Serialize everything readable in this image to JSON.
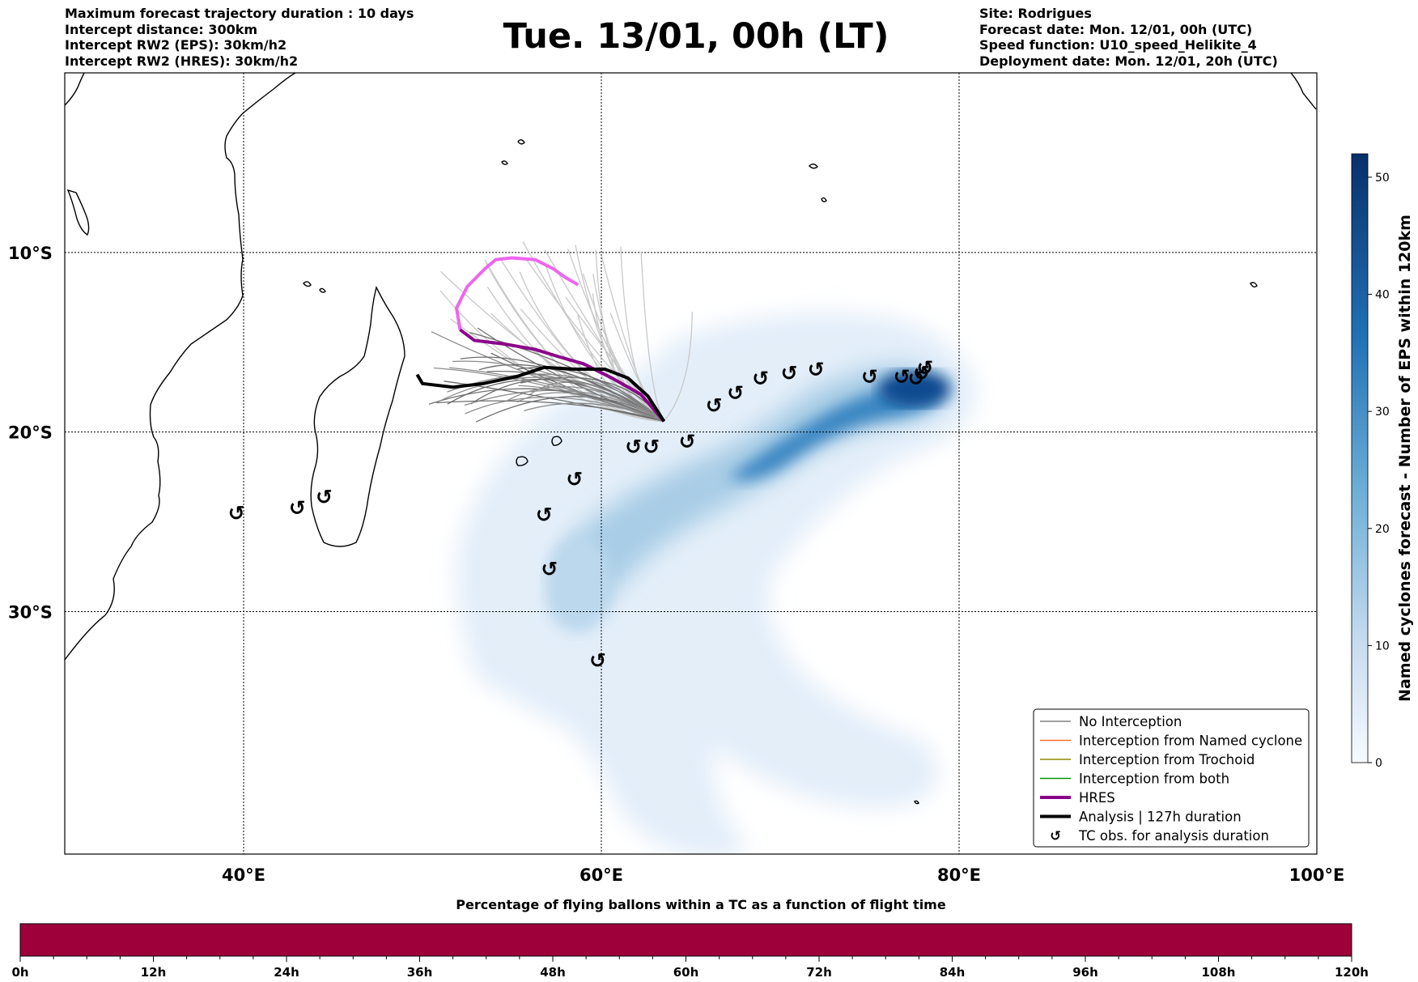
{
  "header_left": [
    "Maximum forecast trajectory duration : 10 days",
    "Intercept distance: 300km",
    "Intercept RW2 (EPS):  30km/h2",
    "Intercept RW2 (HRES): 30km/h2"
  ],
  "title": "Tue. 13/01, 00h (LT)",
  "header_right": [
    "Site: Rodrigues",
    "Forecast date: Mon. 12/01, 00h (UTC)",
    "Speed function: U10_speed_Helikite_4",
    "Deployment date: Mon. 12/01, 20h (UTC)"
  ],
  "map": {
    "lon_range": [
      30,
      100
    ],
    "lat_range": [
      -43.5,
      0
    ],
    "lat_labels": [
      {
        "lat": -10,
        "text": "10°S"
      },
      {
        "lat": -20,
        "text": "20°S"
      },
      {
        "lat": -30,
        "text": "30°S"
      }
    ],
    "lon_labels": [
      {
        "lon": 40,
        "text": "40°E"
      },
      {
        "lon": 60,
        "text": "60°E"
      },
      {
        "lon": 80,
        "text": "80°E"
      },
      {
        "lon": 100,
        "text": "100°E"
      }
    ],
    "tc_symbol": "↺",
    "tc_obs": [
      [
        39.6,
        -24.5
      ],
      [
        43.0,
        -24.2
      ],
      [
        44.5,
        -23.6
      ],
      [
        56.8,
        -24.6
      ],
      [
        57.1,
        -27.6
      ],
      [
        58.5,
        -22.6
      ],
      [
        59.8,
        -32.7
      ],
      [
        61.8,
        -20.8
      ],
      [
        62.8,
        -20.8
      ],
      [
        64.8,
        -20.5
      ],
      [
        66.3,
        -18.5
      ],
      [
        67.5,
        -17.8
      ],
      [
        68.9,
        -17.0
      ],
      [
        70.5,
        -16.7
      ],
      [
        72.0,
        -16.5
      ],
      [
        75.0,
        -16.9
      ],
      [
        76.8,
        -16.9
      ],
      [
        77.6,
        -17.0
      ],
      [
        77.9,
        -16.7
      ],
      [
        78.1,
        -16.4
      ]
    ],
    "hres_track": [
      [
        52.1,
        -14.3
      ],
      [
        52.9,
        -14.9
      ],
      [
        54.6,
        -15.1
      ],
      [
        56.3,
        -15.4
      ],
      [
        57.6,
        -15.8
      ],
      [
        59.0,
        -16.2
      ],
      [
        60.6,
        -17.0
      ],
      [
        62.2,
        -17.9
      ],
      [
        63.5,
        -19.4
      ]
    ],
    "hres_future_track": [
      [
        52.1,
        -14.3
      ],
      [
        51.9,
        -13.1
      ],
      [
        52.5,
        -11.9
      ],
      [
        53.5,
        -10.9
      ],
      [
        54.1,
        -10.4
      ],
      [
        55.0,
        -10.3
      ],
      [
        56.3,
        -10.4
      ],
      [
        57.3,
        -10.9
      ],
      [
        58.0,
        -11.4
      ],
      [
        58.7,
        -11.8
      ]
    ],
    "analysis_track": [
      [
        49.7,
        -16.8
      ],
      [
        50.0,
        -17.3
      ],
      [
        51.7,
        -17.5
      ],
      [
        53.4,
        -17.3
      ],
      [
        55.3,
        -16.9
      ],
      [
        56.8,
        -16.4
      ],
      [
        58.5,
        -16.5
      ],
      [
        60.2,
        -16.5
      ],
      [
        61.5,
        -17.0
      ],
      [
        62.6,
        -18.0
      ],
      [
        63.5,
        -19.4
      ]
    ]
  },
  "colorbar": {
    "ticks": [
      "0",
      "10",
      "20",
      "30",
      "40",
      "50"
    ],
    "max": 52,
    "title": "Named cyclones forecast - Number of EPS within 120km",
    "dark_color": "#08306b",
    "light_color": "#f7fbff"
  },
  "legend": [
    {
      "label": "No Interception",
      "color": "#808080",
      "kind": "thin"
    },
    {
      "label": "Interception from Named cyclone",
      "color": "#ff6a2a",
      "kind": "thin"
    },
    {
      "label": "Interception from Trochoid",
      "color": "#8b8b00",
      "kind": "thin"
    },
    {
      "label": "Interception from both",
      "color": "#009900",
      "kind": "thin"
    },
    {
      "label": "HRES",
      "color": "#8b008b",
      "kind": "thick"
    },
    {
      "label": "Analysis | 127h duration",
      "color": "#000000",
      "kind": "thick"
    },
    {
      "label": "TC obs. for analysis duration",
      "color": "#000000",
      "kind": "marker"
    }
  ],
  "time_bar": {
    "title": "Percentage of flying ballons within a TC as a function of flight time",
    "ticks": [
      "0h",
      "12h",
      "24h",
      "36h",
      "48h",
      "60h",
      "72h",
      "84h",
      "96h",
      "108h",
      "120h"
    ],
    "fill_color": "#9e003a",
    "fill_fraction": 1.0
  }
}
